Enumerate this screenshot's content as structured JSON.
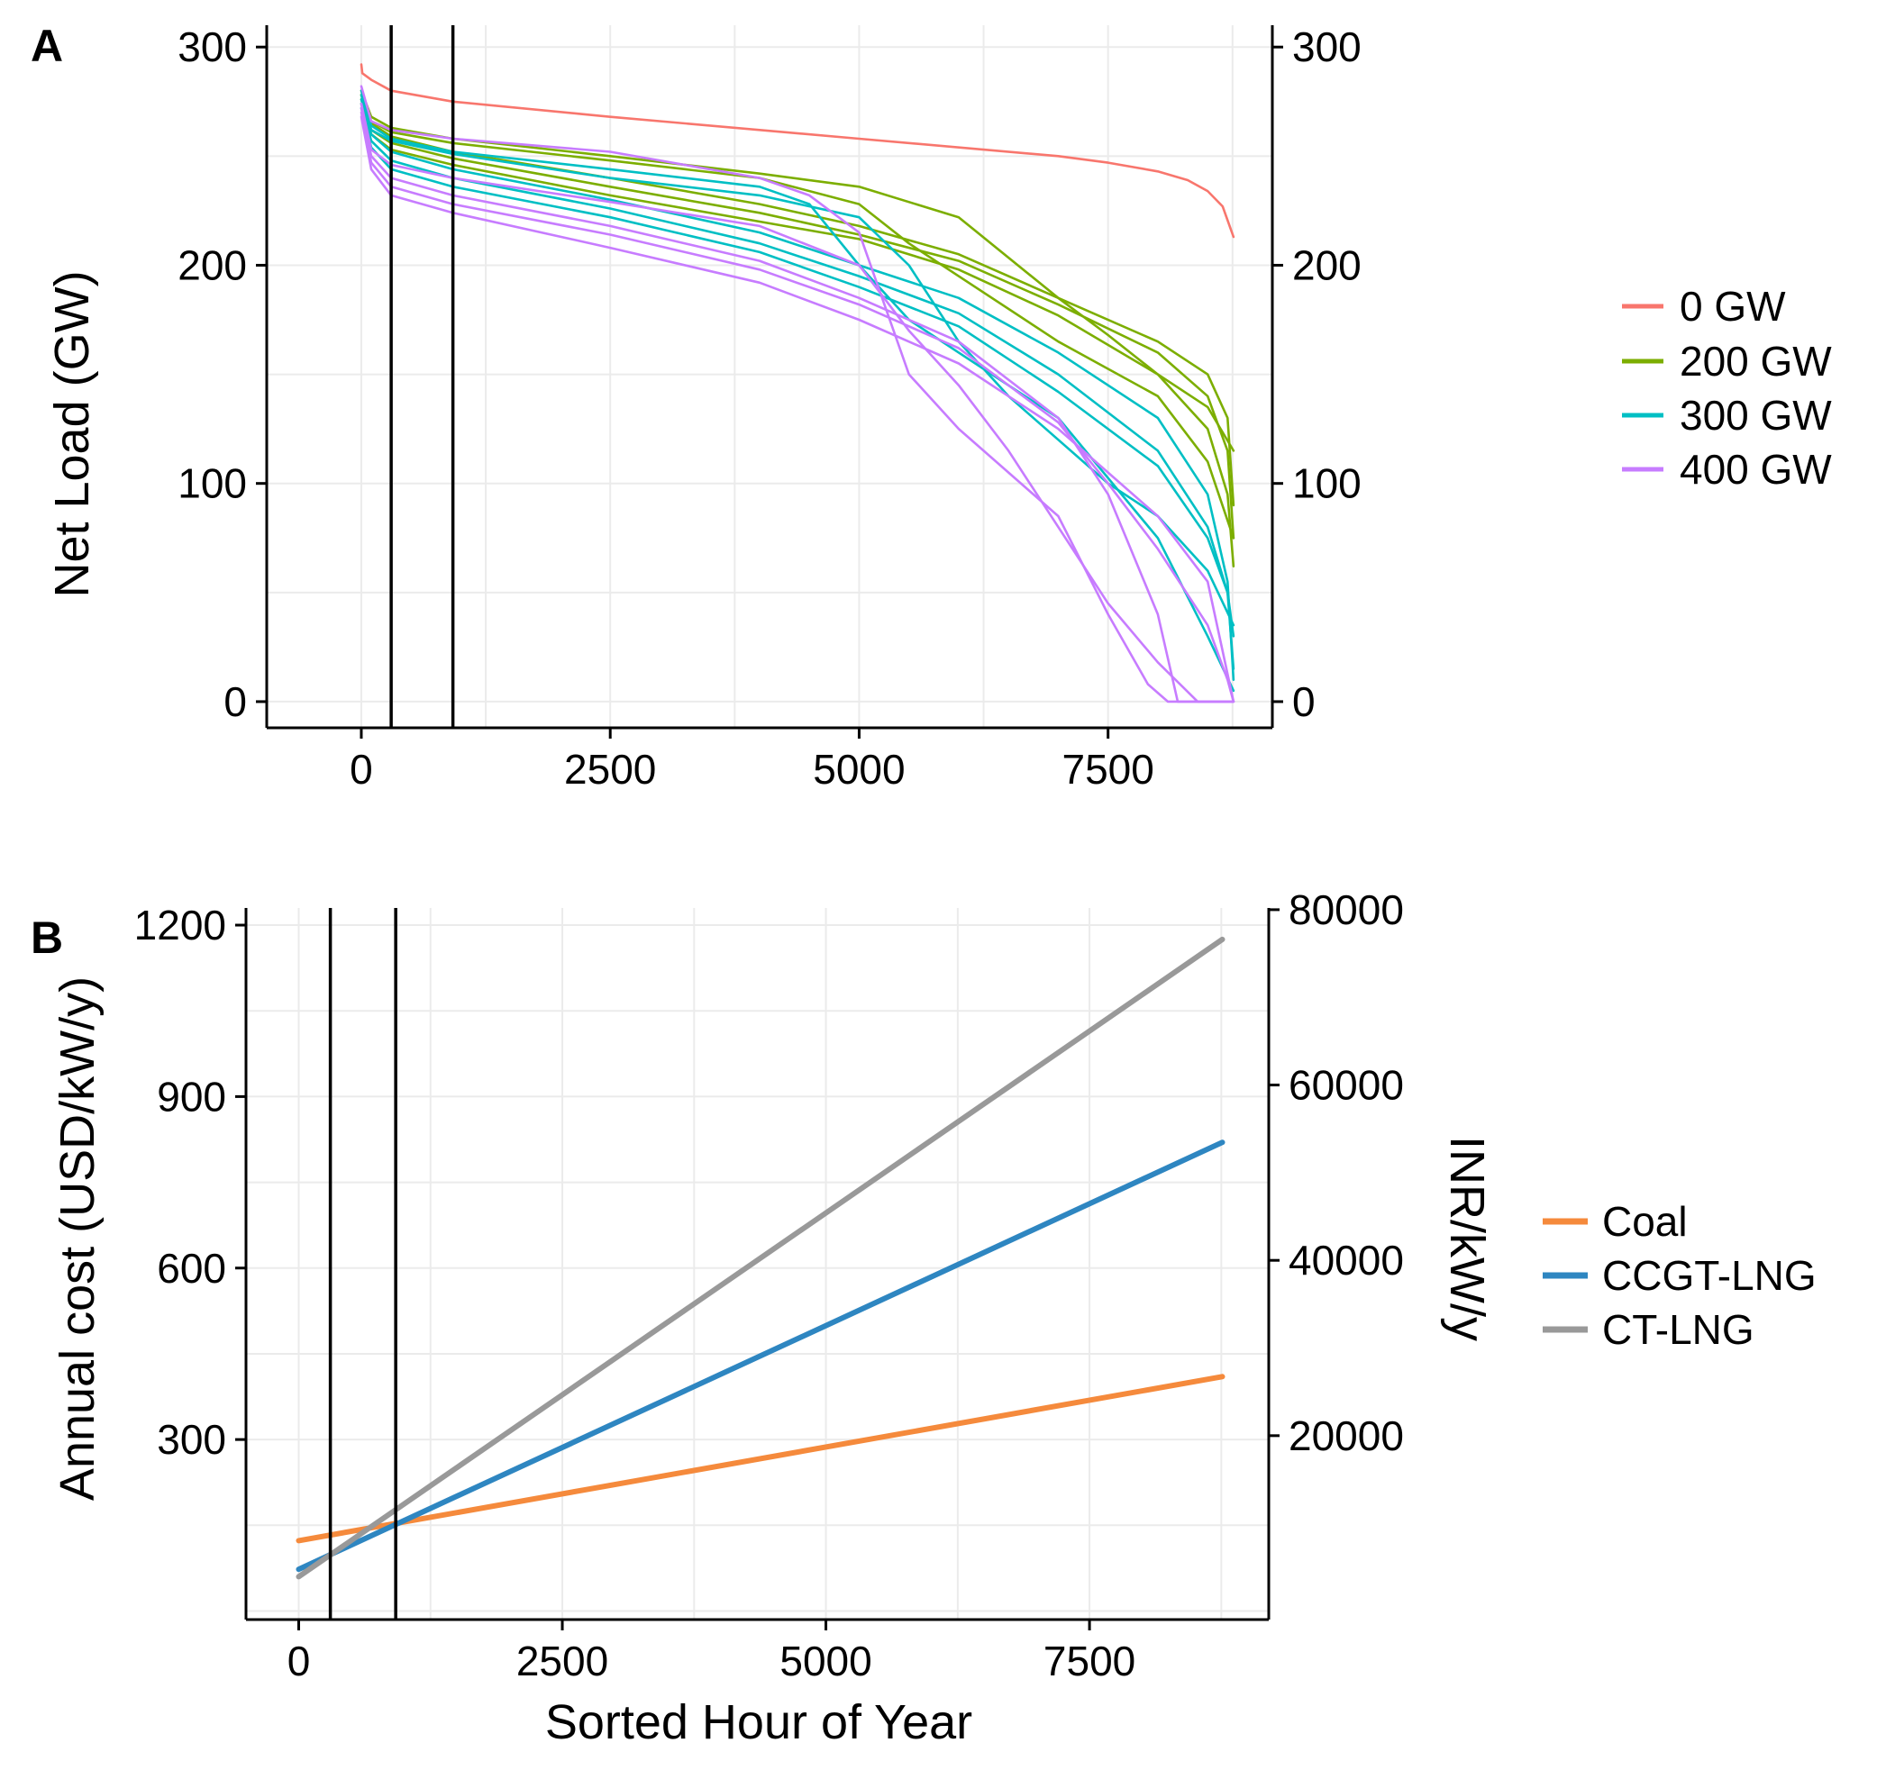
{
  "chart_data": [
    {
      "panel_label": "A",
      "type": "line",
      "xlabel": "",
      "ylabel": "Net Load (GW)",
      "xlim": [
        -950,
        9150
      ],
      "ylim": [
        -12,
        310
      ],
      "x_ticks": [
        0,
        2500,
        5000,
        7500
      ],
      "x_tick_labels": [
        "0",
        "2500",
        "5000",
        "7500"
      ],
      "y_ticks": [
        0,
        100,
        200,
        300
      ],
      "y_tick_labels": [
        "0",
        "100",
        "200",
        "300"
      ],
      "right_y_ticks": [
        0,
        100,
        200,
        300
      ],
      "right_y_tick_labels": [
        "0",
        "100",
        "200",
        "300"
      ],
      "vertical_lines_x": [
        300,
        920
      ],
      "grid": true,
      "legend_position": "right",
      "legend": [
        {
          "label": "0 GW",
          "color": "#F8766D"
        },
        {
          "label": "200 GW",
          "color": "#7CAE00"
        },
        {
          "label": "300 GW",
          "color": "#00BFC4"
        },
        {
          "label": "400 GW",
          "color": "#C77CFF"
        }
      ],
      "series": [
        {
          "group": "0 GW",
          "color": "#F8766D",
          "x": [
            0,
            10,
            100,
            300,
            920,
            2500,
            5000,
            7000,
            7500,
            8000,
            8300,
            8500,
            8650,
            8760
          ],
          "y": [
            292,
            288,
            285,
            280,
            275,
            268,
            258,
            250,
            247,
            243,
            239,
            234,
            227,
            213
          ]
        },
        {
          "group": "200 GW",
          "color": "#7CAE00",
          "x": [
            0,
            100,
            300,
            920,
            2500,
            4000,
            5000,
            6000,
            7000,
            8000,
            8500,
            8700,
            8760
          ],
          "y": [
            278,
            265,
            259,
            252,
            240,
            228,
            218,
            205,
            185,
            165,
            150,
            130,
            90
          ]
        },
        {
          "group": "200 GW",
          "color": "#7CAE00",
          "x": [
            0,
            100,
            300,
            920,
            2500,
            4000,
            5000,
            6000,
            7000,
            8000,
            8500,
            8700,
            8760
          ],
          "y": [
            276,
            262,
            256,
            249,
            236,
            224,
            214,
            202,
            182,
            160,
            140,
            115,
            75
          ]
        },
        {
          "group": "200 GW",
          "color": "#7CAE00",
          "x": [
            0,
            100,
            300,
            920,
            2500,
            4000,
            5000,
            6000,
            7000,
            8000,
            8500,
            8700,
            8760
          ],
          "y": [
            274,
            260,
            253,
            246,
            232,
            220,
            212,
            198,
            177,
            150,
            125,
            95,
            62
          ]
        },
        {
          "group": "200 GW",
          "color": "#7CAE00",
          "x": [
            0,
            100,
            300,
            920,
            2500,
            4000,
            5000,
            6000,
            7000,
            7500,
            8000,
            8500,
            8760
          ],
          "y": [
            280,
            268,
            263,
            258,
            250,
            242,
            236,
            222,
            185,
            168,
            150,
            135,
            115
          ]
        },
        {
          "group": "200 GW",
          "color": "#7CAE00",
          "x": [
            0,
            100,
            300,
            920,
            2500,
            4000,
            5000,
            5500,
            6000,
            7000,
            8000,
            8500,
            8760
          ],
          "y": [
            278,
            266,
            261,
            256,
            248,
            240,
            228,
            210,
            195,
            165,
            140,
            110,
            75
          ]
        },
        {
          "group": "300 GW",
          "color": "#00BFC4",
          "x": [
            0,
            100,
            300,
            920,
            2500,
            4000,
            5000,
            6000,
            7000,
            8000,
            8500,
            8700,
            8760
          ],
          "y": [
            276,
            260,
            252,
            244,
            230,
            215,
            200,
            185,
            160,
            130,
            95,
            55,
            10
          ]
        },
        {
          "group": "300 GW",
          "color": "#00BFC4",
          "x": [
            0,
            100,
            300,
            920,
            2500,
            4000,
            5000,
            6000,
            7000,
            8000,
            8500,
            8700,
            8760
          ],
          "y": [
            274,
            257,
            248,
            240,
            226,
            210,
            195,
            178,
            150,
            115,
            80,
            50,
            15
          ]
        },
        {
          "group": "300 GW",
          "color": "#00BFC4",
          "x": [
            0,
            100,
            300,
            920,
            2500,
            4000,
            5000,
            6000,
            7000,
            8000,
            8500,
            8700,
            8760
          ],
          "y": [
            272,
            254,
            244,
            236,
            222,
            206,
            190,
            172,
            142,
            108,
            75,
            50,
            30
          ]
        },
        {
          "group": "300 GW",
          "color": "#00BFC4",
          "x": [
            0,
            100,
            300,
            920,
            2500,
            4000,
            5000,
            5500,
            6000,
            6500,
            7000,
            7500,
            8000,
            8500,
            8760
          ],
          "y": [
            278,
            262,
            257,
            251,
            240,
            232,
            222,
            200,
            165,
            140,
            120,
            100,
            85,
            60,
            35
          ]
        },
        {
          "group": "300 GW",
          "color": "#00BFC4",
          "x": [
            0,
            100,
            300,
            920,
            2500,
            4000,
            4500,
            5000,
            5500,
            6000,
            7000,
            8000,
            8500,
            8760
          ],
          "y": [
            280,
            264,
            258,
            252,
            244,
            236,
            228,
            200,
            175,
            160,
            130,
            75,
            30,
            5
          ]
        },
        {
          "group": "400 GW",
          "color": "#C77CFF",
          "x": [
            0,
            100,
            300,
            920,
            2500,
            4000,
            5000,
            6000,
            7000,
            7500,
            8000,
            8200,
            8760
          ],
          "y": [
            272,
            250,
            240,
            232,
            218,
            202,
            185,
            165,
            130,
            95,
            40,
            0,
            0
          ]
        },
        {
          "group": "400 GW",
          "color": "#C77CFF",
          "x": [
            0,
            100,
            300,
            920,
            2500,
            4000,
            5000,
            6000,
            7000,
            7500,
            8000,
            8500,
            8700,
            8760
          ],
          "y": [
            270,
            247,
            236,
            228,
            214,
            198,
            182,
            162,
            128,
            100,
            70,
            35,
            10,
            0
          ]
        },
        {
          "group": "400 GW",
          "color": "#C77CFF",
          "x": [
            0,
            100,
            300,
            920,
            2500,
            4000,
            5000,
            6000,
            7000,
            7500,
            8000,
            8500,
            8760
          ],
          "y": [
            268,
            244,
            232,
            224,
            208,
            192,
            175,
            155,
            125,
            105,
            85,
            55,
            0
          ]
        },
        {
          "group": "400 GW",
          "color": "#C77CFF",
          "x": [
            0,
            100,
            300,
            920,
            2500,
            4000,
            5000,
            5500,
            6000,
            6500,
            7000,
            7500,
            8000,
            8400,
            8760
          ],
          "y": [
            274,
            253,
            246,
            240,
            229,
            218,
            200,
            170,
            145,
            115,
            80,
            45,
            18,
            0,
            0
          ]
        },
        {
          "group": "400 GW",
          "color": "#C77CFF",
          "x": [
            0,
            100,
            300,
            920,
            2500,
            4000,
            4500,
            5000,
            5500,
            6000,
            7000,
            7500,
            7900,
            8100,
            8760
          ],
          "y": [
            282,
            266,
            262,
            258,
            252,
            240,
            232,
            215,
            150,
            125,
            85,
            40,
            8,
            0,
            0
          ]
        }
      ]
    },
    {
      "panel_label": "B",
      "type": "line",
      "xlabel": "Sorted Hour of Year",
      "ylabel": "Annual cost (USD/kW/y)",
      "right_ylabel": "INR/kW/y",
      "xlim": [
        -500,
        9200
      ],
      "ylim": [
        -15,
        1230
      ],
      "x_ticks": [
        0,
        2500,
        5000,
        7500
      ],
      "x_tick_labels": [
        "0",
        "2500",
        "5000",
        "7500"
      ],
      "y_ticks": [
        300,
        600,
        900,
        1200
      ],
      "y_tick_labels": [
        "300",
        "600",
        "900",
        "1200"
      ],
      "right_y_ticks": [
        20000,
        40000,
        60000,
        80000
      ],
      "right_y_tick_labels": [
        "20000",
        "40000",
        "60000",
        "80000"
      ],
      "right_axis_inr_per_usd": 65.2,
      "vertical_lines_x": [
        300,
        920
      ],
      "grid": true,
      "legend_position": "right",
      "series": [
        {
          "name": "Coal",
          "color": "#F58A3C",
          "x": [
            0,
            8760
          ],
          "y": [
            123,
            410
          ]
        },
        {
          "name": "CCGT-LNG",
          "color": "#2E86C1",
          "x": [
            0,
            8760
          ],
          "y": [
            73,
            820
          ]
        },
        {
          "name": "CT-LNG",
          "color": "#999999",
          "x": [
            0,
            8760
          ],
          "y": [
            60,
            1175
          ]
        }
      ]
    }
  ]
}
